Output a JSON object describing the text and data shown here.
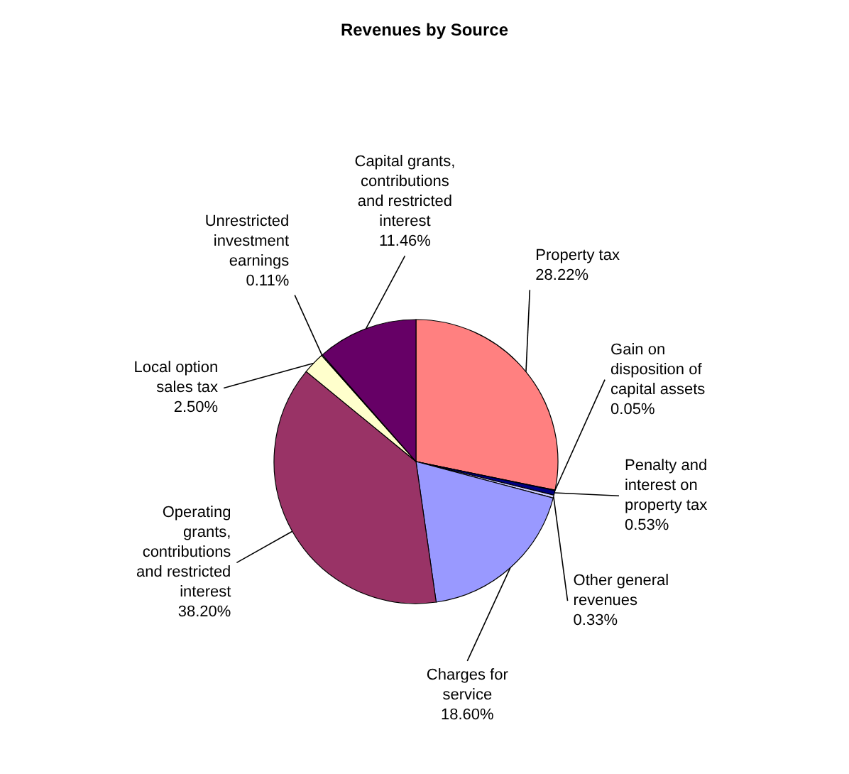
{
  "chart_data": {
    "type": "pie",
    "title": "Revenues  by Source",
    "categories": [
      "Property tax",
      "Gain on disposition of capital assets",
      "Penalty and interest on property tax",
      "Other general revenues",
      "Charges for service",
      "Operating grants, contributions and restricted interest",
      "Local option sales tax",
      "Unrestricted investment earnings",
      "Capital grants, contributions and restricted interest"
    ],
    "values": [
      28.22,
      0.05,
      0.53,
      0.33,
      18.6,
      38.2,
      2.5,
      0.11,
      11.46
    ],
    "colors": [
      "#ff8080",
      "#0066cc",
      "#000080",
      "#ccccff",
      "#9999ff",
      "#993366",
      "#ffffcc",
      "#ccffff",
      "#660066"
    ],
    "value_labels": [
      "28.22%",
      "0.05%",
      "0.53%",
      "0.33%",
      "18.60%",
      "38.20%",
      "2.50%",
      "0.11%",
      "11.46%"
    ]
  }
}
